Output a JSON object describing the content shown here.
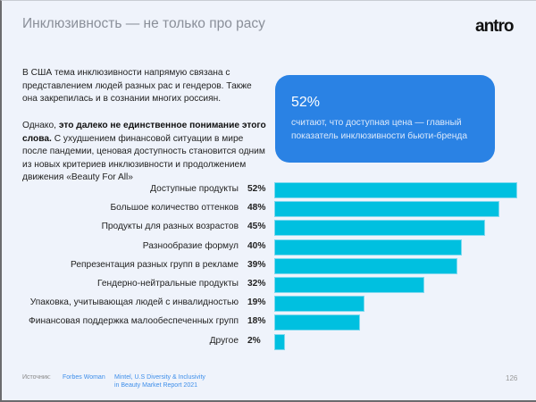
{
  "title": "Инклюзивность — не только про расу",
  "logo": "antro",
  "paragraph1": "В США тема инклюзивности напрямую связана с представлением людей разных рас и гендеров. Также она закрепилась и в сознании многих россиян.",
  "paragraph2": {
    "pre": "Однако, ",
    "bold": "это далеко не единственное понимание этого слова.",
    "post": " С ухудшением финансовой ситуации в мире после пандемии, ценовая доступность становится одним из новых критериев инклюзивности и продолжением движения «Beauty For All»"
  },
  "callout": {
    "value": "52%",
    "text": "считают, что доступная цена — главный показатель инклюзивности бьюти-бренда"
  },
  "chart_data": {
    "type": "bar",
    "orientation": "horizontal",
    "categories": [
      "Доступные продукты",
      "Большое количество оттенков",
      "Продукты для разных возрастов",
      "Разнообразие формул",
      "Репрезентация разных групп в рекламе",
      "Гендерно-нейтральные продукты",
      "Упаковка, учитывающая людей с инвалидностью",
      "Финансовая поддержка малообеспеченных групп",
      "Другое"
    ],
    "values": [
      52,
      48,
      45,
      40,
      39,
      32,
      19,
      18,
      2
    ],
    "labels": [
      "52%",
      "48%",
      "45%",
      "40%",
      "39%",
      "32%",
      "19%",
      "18%",
      "2%"
    ],
    "bar_color": "#00c0e0"
  },
  "footer": {
    "source_label": "Источник:",
    "source1": "Forbes Woman",
    "source2_line1": "Mintel, U.S Diversity & Inclusivity",
    "source2_line2": "in Beauty Market Report 2021",
    "page": "126"
  }
}
